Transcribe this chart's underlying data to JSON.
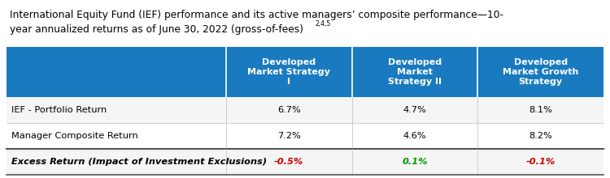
{
  "title_line1": "International Equity Fund (IEF) performance and its active managers’ composite performance—10-",
  "title_line2": "year annualized returns as of June 30, 2022 (gross-of-fees)",
  "title_superscript": "2,4,5",
  "header_bg": "#1a7abf",
  "header_text_color": "#ffffff",
  "col_headers": [
    "Developed\nMarket Strategy\nI",
    "Developed\nMarket\nStrategy II",
    "Developed\nMarket Growth\nStrategy"
  ],
  "row_labels": [
    "IEF - Portfolio Return",
    "Manager Composite Return",
    "Excess Return (Impact of Investment Exclusions)"
  ],
  "row_italic": [
    false,
    false,
    true
  ],
  "row_bold": [
    false,
    false,
    true
  ],
  "data": [
    [
      "6.7%",
      "4.7%",
      "8.1%"
    ],
    [
      "7.2%",
      "4.6%",
      "8.2%"
    ],
    [
      "-0.5%",
      "0.1%",
      "-0.1%"
    ]
  ],
  "data_colors": [
    [
      "#000000",
      "#000000",
      "#000000"
    ],
    [
      "#000000",
      "#000000",
      "#000000"
    ],
    [
      "#cc0000",
      "#009900",
      "#cc0000"
    ]
  ],
  "row_bg": [
    "#f5f5f5",
    "#ffffff",
    "#f5f5f5"
  ],
  "bg_color": "#ffffff",
  "title_fontsize": 8.8,
  "header_fontsize": 8.0,
  "data_fontsize": 8.2,
  "row_label_fontsize": 8.2
}
